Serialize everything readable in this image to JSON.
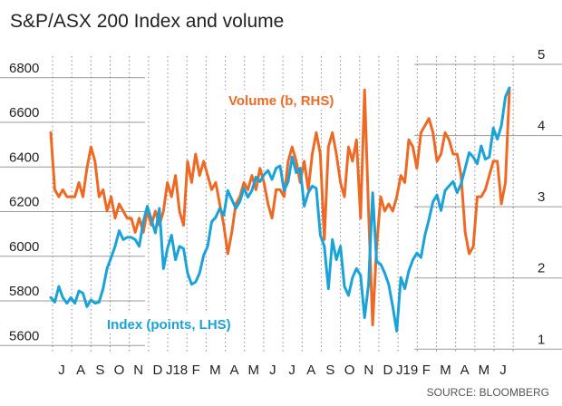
{
  "chart_data": {
    "type": "line",
    "title": "S&P/ASX 200 Index and volume",
    "source": "SOURCE: BLOOMBERG",
    "x_tick_labels": [
      "J",
      "A",
      "S",
      "O",
      "N",
      "D",
      "J18",
      "F",
      "M",
      "A",
      "M",
      "J",
      "J",
      "A",
      "S",
      "O",
      "N",
      "D",
      "J19",
      "F",
      "M",
      "A",
      "M",
      "J"
    ],
    "y_left": {
      "ticks": [
        5600,
        5800,
        6000,
        6200,
        6400,
        6600,
        6800
      ],
      "range": [
        5520,
        6860
      ]
    },
    "y_right": {
      "ticks": [
        1,
        2,
        3,
        4,
        5
      ],
      "range": [
        0.8,
        5.0
      ]
    },
    "grid": "dotted vertical",
    "series": [
      {
        "name": "Index (points, LHS)",
        "axis": "left",
        "color": "#1aa3d9",
        "values": [
          5770,
          5750,
          5820,
          5770,
          5745,
          5770,
          5745,
          5800,
          5790,
          5730,
          5760,
          5745,
          5750,
          5810,
          5900,
          5950,
          6000,
          6070,
          6030,
          6040,
          6040,
          6030,
          6000,
          6110,
          6180,
          6120,
          6060,
          6170,
          5900,
          5990,
          6050,
          5940,
          6000,
          5990,
          5880,
          5830,
          5840,
          5880,
          5960,
          6000,
          6110,
          6130,
          6170,
          6140,
          6250,
          6210,
          6170,
          6200,
          6260,
          6220,
          6250,
          6310,
          6290,
          6320,
          6340,
          6300,
          6350,
          6360,
          6250,
          6290,
          6400,
          6330,
          6350,
          6180,
          6240,
          6270,
          6260,
          6050,
          6000,
          5810,
          6030,
          5940,
          6000,
          5820,
          5780,
          5860,
          5900,
          5870,
          5680,
          5830,
          6240,
          5930,
          5920,
          5880,
          5830,
          5730,
          5620,
          5860,
          5810,
          5890,
          5940,
          5970,
          5950,
          6050,
          6120,
          6200,
          6230,
          6160,
          6250,
          6270,
          6290,
          6240,
          6280,
          6350,
          6420,
          6400,
          6370,
          6450,
          6390,
          6400,
          6530,
          6480,
          6540,
          6670,
          6710
        ]
      },
      {
        "name": "Volume (b, RHS)",
        "axis": "right",
        "color": "#ee6a24",
        "values": [
          3.9,
          3.1,
          3.0,
          3.1,
          3.0,
          3.0,
          3.0,
          3.2,
          3.0,
          3.4,
          3.7,
          3.5,
          3.0,
          3.1,
          2.8,
          3.0,
          2.7,
          2.9,
          2.8,
          2.7,
          2.7,
          2.5,
          2.7,
          2.5,
          2.8,
          2.6,
          2.8,
          2.6,
          2.8,
          3.2,
          3.0,
          3.3,
          2.8,
          2.6,
          3.5,
          3.2,
          3.6,
          3.3,
          3.5,
          3.3,
          3.1,
          3.2,
          2.9,
          2.6,
          2.2,
          2.5,
          2.9,
          3.0,
          3.2,
          3.1,
          3.3,
          3.1,
          3.4,
          3.2,
          2.9,
          2.7,
          3.1,
          3.1,
          3.0,
          3.5,
          3.7,
          3.5,
          3.2,
          3.5,
          3.1,
          3.6,
          3.9,
          3.6,
          2.4,
          3.7,
          3.9,
          3.6,
          3.2,
          3.0,
          3.7,
          3.5,
          3.8,
          2.7,
          4.5,
          2.8,
          1.2,
          2.3,
          3.0,
          2.8,
          2.9,
          2.8,
          3.0,
          3.3,
          3.2,
          3.8,
          3.7,
          3.4,
          3.9,
          4.0,
          4.1,
          3.9,
          3.5,
          3.6,
          3.9,
          3.8,
          3.6,
          3.6,
          3.3,
          2.5,
          2.2,
          2.3,
          3.0,
          3.0,
          3.1,
          3.3,
          3.5,
          3.5,
          2.9,
          3.2,
          4.5
        ]
      }
    ],
    "annotations": [
      {
        "text": "Volume (b, RHS)",
        "series": "Volume (b, RHS)"
      },
      {
        "text": "Index (points, LHS)",
        "series": "Index (points, LHS)"
      }
    ]
  }
}
